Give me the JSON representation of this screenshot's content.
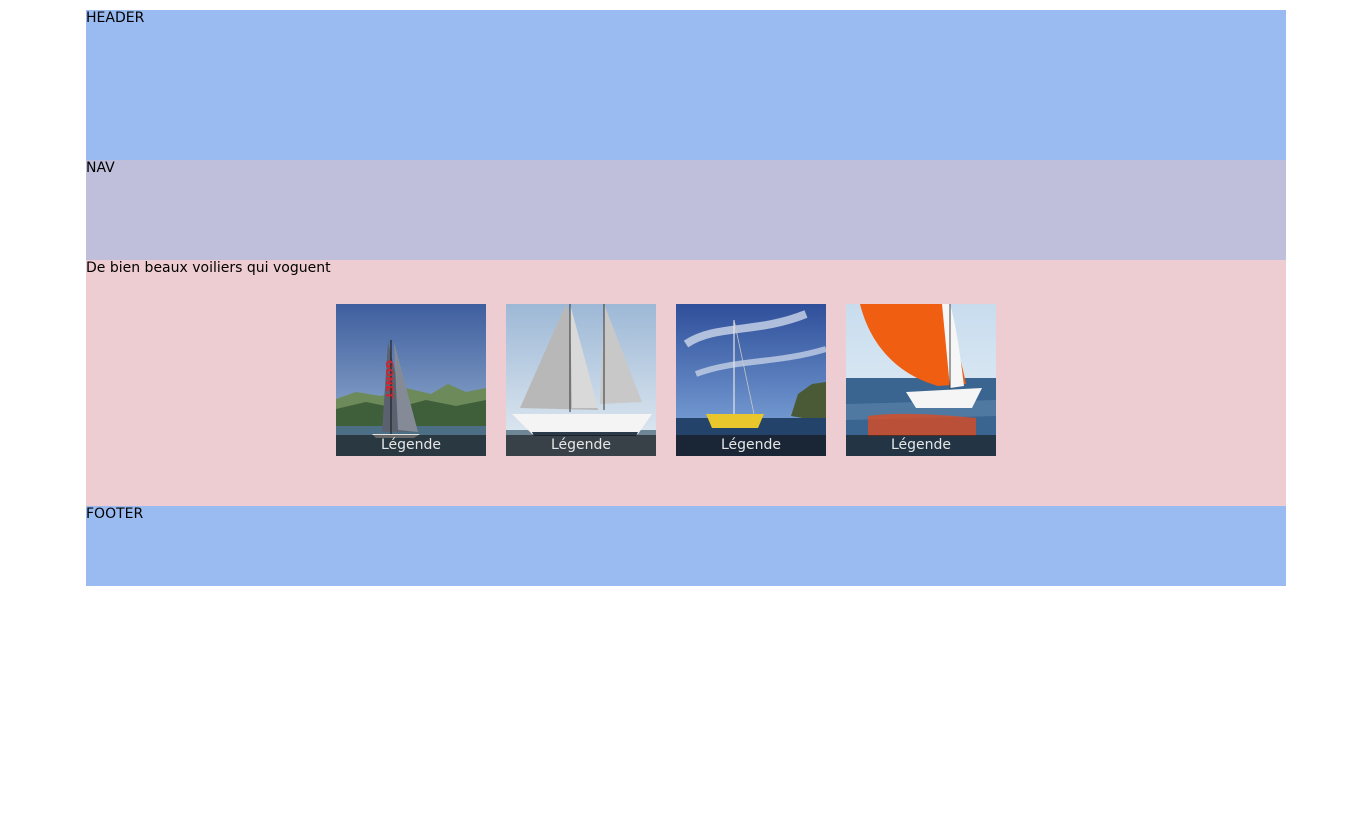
{
  "header": {
    "label": "HEADER"
  },
  "nav": {
    "label": "NAV"
  },
  "main": {
    "title": "De bien beaux voiliers qui voguent",
    "gallery": [
      {
        "caption": "Légende",
        "image": "sailboat-race-lake-icon",
        "sail_text": "GONET"
      },
      {
        "caption": "Légende",
        "image": "sailboat-ketch-icon"
      },
      {
        "caption": "Légende",
        "image": "sailboat-yellow-hull-icon"
      },
      {
        "caption": "Légende",
        "image": "sailboat-orange-spinnaker-icon"
      }
    ]
  },
  "footer": {
    "label": "FOOTER"
  }
}
